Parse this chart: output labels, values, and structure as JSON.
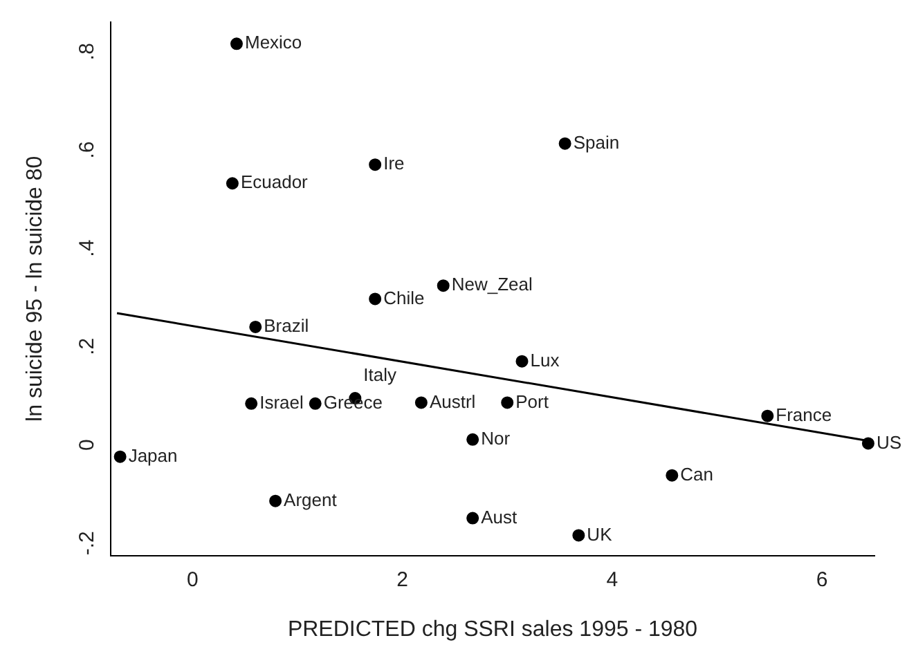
{
  "chart_data": {
    "type": "scatter",
    "xlabel": "PREDICTED chg SSRI sales 1995 - 1980",
    "ylabel": "ln suicide 95 - ln suicide 80",
    "xlim": [
      -0.78,
      6.5
    ],
    "xticks": [
      0,
      2,
      4,
      6
    ],
    "ylim": [
      -0.225,
      0.86
    ],
    "yticks": [
      {
        "value": -0.2,
        "label": "-.2"
      },
      {
        "value": 0,
        "label": "0"
      },
      {
        "value": 0.2,
        "label": ".2"
      },
      {
        "value": 0.4,
        "label": ".4"
      },
      {
        "value": 0.6,
        "label": ".6"
      },
      {
        "value": 0.8,
        "label": ".8"
      }
    ],
    "grid": false,
    "legend": false,
    "marker": "circle",
    "series": [
      {
        "color": "#000000",
        "x": [
          0.42,
          3.55,
          1.74,
          0.38,
          2.39,
          1.74,
          0.6,
          3.14,
          0.56,
          1.17,
          1.55,
          2.18,
          3.0,
          5.48,
          6.44,
          2.67,
          -0.69,
          4.57,
          0.79,
          2.67,
          3.68
        ],
        "values": [
          0.816,
          0.613,
          0.57,
          0.532,
          0.324,
          0.297,
          0.24,
          0.17,
          0.084,
          0.084,
          0.095,
          0.086,
          0.086,
          0.059,
          0.003,
          0.011,
          -0.024,
          -0.062,
          -0.114,
          -0.149,
          -0.184
        ]
      },
      {
        "type": "line",
        "color": "#000000",
        "marker": "none",
        "x": [
          -0.72,
          6.45
        ],
        "values": [
          0.268,
          0.008
        ]
      }
    ],
    "annotations": [
      {
        "text": "Mexico",
        "x": 0.42,
        "y": 0.816
      },
      {
        "text": "Spain",
        "x": 3.55,
        "y": 0.613
      },
      {
        "text": "Ire",
        "x": 1.74,
        "y": 0.57
      },
      {
        "text": "Ecuador",
        "x": 0.38,
        "y": 0.532
      },
      {
        "text": "New_Zeal",
        "x": 2.39,
        "y": 0.324
      },
      {
        "text": "Chile",
        "x": 1.74,
        "y": 0.297
      },
      {
        "text": "Brazil",
        "x": 0.6,
        "y": 0.24
      },
      {
        "text": "Lux",
        "x": 3.14,
        "y": 0.17
      },
      {
        "text": "Israel",
        "x": 0.56,
        "y": 0.084
      },
      {
        "text": "Greece",
        "x": 1.17,
        "y": 0.084
      },
      {
        "text": "Italy",
        "x": 1.55,
        "y": 0.095
      },
      {
        "text": "Austrl",
        "x": 2.18,
        "y": 0.086
      },
      {
        "text": "Port",
        "x": 3.0,
        "y": 0.086
      },
      {
        "text": "France",
        "x": 5.48,
        "y": 0.059
      },
      {
        "text": "US",
        "x": 6.44,
        "y": 0.003
      },
      {
        "text": "Nor",
        "x": 2.67,
        "y": 0.011
      },
      {
        "text": "Japan",
        "x": -0.69,
        "y": -0.024
      },
      {
        "text": "Can",
        "x": 4.57,
        "y": -0.062
      },
      {
        "text": "Argent",
        "x": 0.79,
        "y": -0.114
      },
      {
        "text": "Aust",
        "x": 2.67,
        "y": -0.149
      },
      {
        "text": "UK",
        "x": 3.68,
        "y": -0.184
      }
    ]
  }
}
